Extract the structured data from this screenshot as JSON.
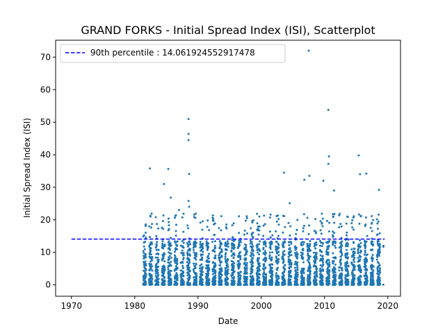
{
  "chart_data": {
    "type": "scatter",
    "title": "GRAND FORKS - Initial Spread Index (ISI), Scatterplot",
    "xlabel": "Date",
    "ylabel": "Initial Spread Index (ISI)",
    "xlim": [
      1967.5,
      2022.0
    ],
    "ylim": [
      -3.5,
      75.2
    ],
    "x_ticks": [
      1970,
      1980,
      1990,
      2000,
      2010,
      2020
    ],
    "y_ticks": [
      0,
      10,
      20,
      30,
      40,
      50,
      60,
      70
    ],
    "grid": false,
    "legend_position": "upper-left",
    "point_color": "#1f77b4",
    "series": [
      {
        "name": "",
        "x_range": [
          1981.3,
          2019.3
        ],
        "annual_season_points": true,
        "note_points": [
          [
            1982.4,
            35.8
          ],
          [
            1984.6,
            31.0
          ],
          [
            1985.3,
            35.6
          ],
          [
            1985.7,
            26.8
          ],
          [
            1987.0,
            23.0
          ],
          [
            1988.5,
            51.0
          ],
          [
            1988.5,
            46.4
          ],
          [
            1988.5,
            44.5
          ],
          [
            1988.6,
            34.1
          ],
          [
            1988.5,
            25.8
          ],
          [
            1988.6,
            24.0
          ],
          [
            2003.6,
            34.5
          ],
          [
            2004.5,
            25.1
          ],
          [
            2006.8,
            32.3
          ],
          [
            2007.5,
            72.0
          ],
          [
            2007.6,
            33.5
          ],
          [
            2009.8,
            32.0
          ],
          [
            2010.6,
            53.8
          ],
          [
            2010.7,
            39.5
          ],
          [
            2010.6,
            37.2
          ],
          [
            2011.5,
            29.0
          ],
          [
            2015.4,
            39.8
          ],
          [
            2015.6,
            34.0
          ],
          [
            2016.6,
            34.2
          ],
          [
            2018.6,
            29.2
          ]
        ]
      },
      {
        "name": "90th percentile : 14.061924552917478",
        "type": "hline",
        "y": 14.061924552917478,
        "x_range": [
          1970.0,
          2019.5
        ],
        "color": "#0000ff",
        "style": "dashed"
      }
    ]
  }
}
